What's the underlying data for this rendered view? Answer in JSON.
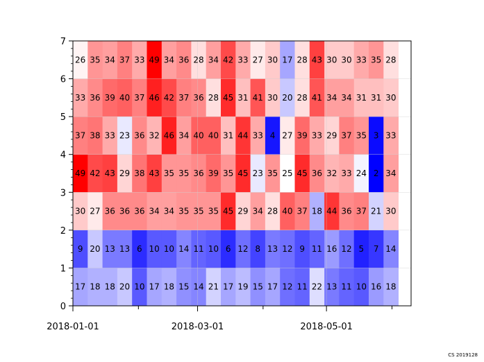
{
  "chart_data": {
    "type": "heatmap",
    "title": "",
    "xlabel": "",
    "ylabel": "",
    "ylim": [
      0,
      7
    ],
    "y_ticks": [
      "0",
      "1",
      "2",
      "3",
      "4",
      "5",
      "6",
      "7"
    ],
    "x_tick_labels": [
      {
        "label": "2018-01-01",
        "date": "2018-01-01"
      },
      {
        "label": "2018-03-01",
        "date": "2018-03-01"
      },
      {
        "label": "2018-05-01",
        "date": "2018-05-01"
      }
    ],
    "x_start": "2018-01-01",
    "column_days": 7,
    "color_scale": {
      "low": "#0000ff",
      "mid": "#ffffff",
      "high": "#ff0000",
      "vmin": 2,
      "vmax": 49,
      "center": 25
    },
    "rows": [
      {
        "y": "0-1",
        "values": [
          17,
          18,
          18,
          20,
          10,
          17,
          18,
          15,
          14,
          21,
          17,
          19,
          15,
          17,
          12,
          11,
          22,
          13,
          11,
          10,
          16,
          18
        ]
      },
      {
        "y": "1-2",
        "values": [
          9,
          20,
          13,
          13,
          6,
          10,
          10,
          14,
          11,
          10,
          6,
          12,
          8,
          13,
          12,
          9,
          11,
          16,
          12,
          5,
          7,
          14
        ]
      },
      {
        "y": "2-3",
        "values": [
          30,
          27,
          36,
          36,
          36,
          34,
          34,
          35,
          35,
          35,
          45,
          29,
          34,
          28,
          40,
          37,
          18,
          44,
          36,
          37,
          21,
          30
        ]
      },
      {
        "y": "3-4",
        "values": [
          49,
          42,
          43,
          29,
          38,
          43,
          35,
          35,
          36,
          39,
          35,
          45,
          23,
          35,
          25,
          45,
          36,
          32,
          33,
          24,
          2,
          34
        ]
      },
      {
        "y": "4-5",
        "values": [
          37,
          38,
          33,
          23,
          36,
          32,
          46,
          34,
          40,
          40,
          31,
          44,
          33,
          4,
          27,
          39,
          33,
          29,
          37,
          35,
          3,
          33
        ]
      },
      {
        "y": "5-6",
        "values": [
          33,
          36,
          39,
          40,
          37,
          46,
          42,
          37,
          36,
          28,
          45,
          31,
          41,
          30,
          20,
          28,
          41,
          34,
          34,
          31,
          31,
          30
        ]
      },
      {
        "y": "6-7",
        "values": [
          26,
          35,
          34,
          37,
          33,
          49,
          34,
          36,
          28,
          34,
          42,
          33,
          27,
          30,
          17,
          28,
          43,
          30,
          30,
          33,
          35,
          28
        ]
      }
    ]
  },
  "footer": {
    "text": "CS 2019128"
  }
}
